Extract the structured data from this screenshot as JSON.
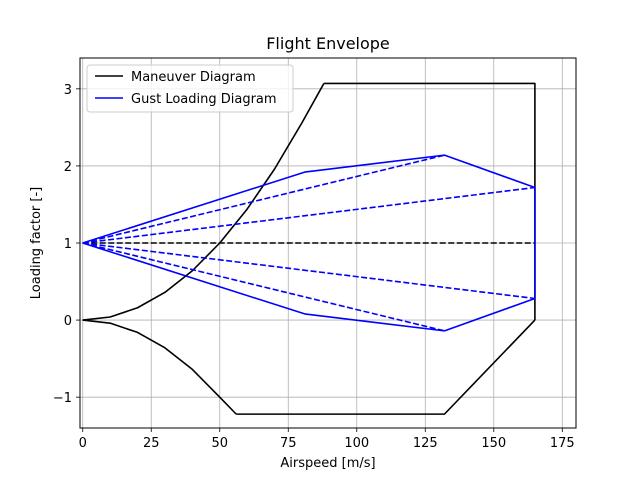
{
  "chart_data": {
    "type": "line",
    "title": "Flight Envelope",
    "xlabel": "Airspeed [m/s]",
    "ylabel": "Loading factor [-]",
    "xlim": [
      -1,
      180
    ],
    "ylim": [
      -1.4,
      3.4
    ],
    "xticks": [
      0,
      25,
      50,
      75,
      100,
      125,
      150,
      175
    ],
    "yticks": [
      -1,
      0,
      1,
      2,
      3
    ],
    "ytick_labels": [
      "−1",
      "0",
      "1",
      "2",
      "3"
    ],
    "grid": true,
    "legend_position": "top-left",
    "legend": [
      {
        "label": "Maneuver Diagram",
        "color": "#000000"
      },
      {
        "label": "Gust Loading Diagram",
        "color": "#0000ff"
      }
    ],
    "series": [
      {
        "name": "Maneuver Diagram",
        "group": "maneuver",
        "color": "#000000",
        "style": "solid",
        "x": [
          0,
          10,
          20,
          30,
          40,
          50,
          60,
          70,
          80,
          88
        ],
        "y": [
          0,
          0.04,
          0.16,
          0.36,
          0.64,
          1.0,
          1.44,
          1.96,
          2.56,
          3.07
        ]
      },
      {
        "group": "maneuver",
        "color": "#000000",
        "style": "solid",
        "x": [
          88,
          165,
          165
        ],
        "y": [
          3.07,
          3.07,
          0
        ]
      },
      {
        "group": "maneuver",
        "color": "#000000",
        "style": "solid",
        "x": [
          165,
          132,
          56
        ],
        "y": [
          0,
          -1.22,
          -1.22
        ]
      },
      {
        "group": "maneuver",
        "color": "#000000",
        "style": "solid",
        "x": [
          0,
          10,
          20,
          30,
          40,
          50,
          56
        ],
        "y": [
          0,
          -0.04,
          -0.16,
          -0.36,
          -0.64,
          -1.0,
          -1.22
        ]
      },
      {
        "group": "maneuver",
        "color": "#000000",
        "style": "dashed",
        "x": [
          0,
          165
        ],
        "y": [
          1,
          1
        ]
      },
      {
        "name": "Gust Loading Diagram",
        "group": "gust",
        "color": "#0000ff",
        "style": "solid",
        "x": [
          0,
          81,
          132,
          165,
          165,
          132,
          81,
          0
        ],
        "y": [
          1,
          1.92,
          2.14,
          1.72,
          0.28,
          -0.14,
          0.08,
          1
        ]
      },
      {
        "group": "gust",
        "color": "#0000ff",
        "style": "dashed",
        "x": [
          0,
          132
        ],
        "y": [
          1,
          2.14
        ]
      },
      {
        "group": "gust",
        "color": "#0000ff",
        "style": "dashed",
        "x": [
          0,
          165
        ],
        "y": [
          1,
          1.72
        ]
      },
      {
        "group": "gust",
        "color": "#0000ff",
        "style": "dashed",
        "x": [
          0,
          165
        ],
        "y": [
          1,
          0.28
        ]
      },
      {
        "group": "gust",
        "color": "#0000ff",
        "style": "dashed",
        "x": [
          0,
          132
        ],
        "y": [
          1,
          -0.14
        ]
      }
    ]
  }
}
